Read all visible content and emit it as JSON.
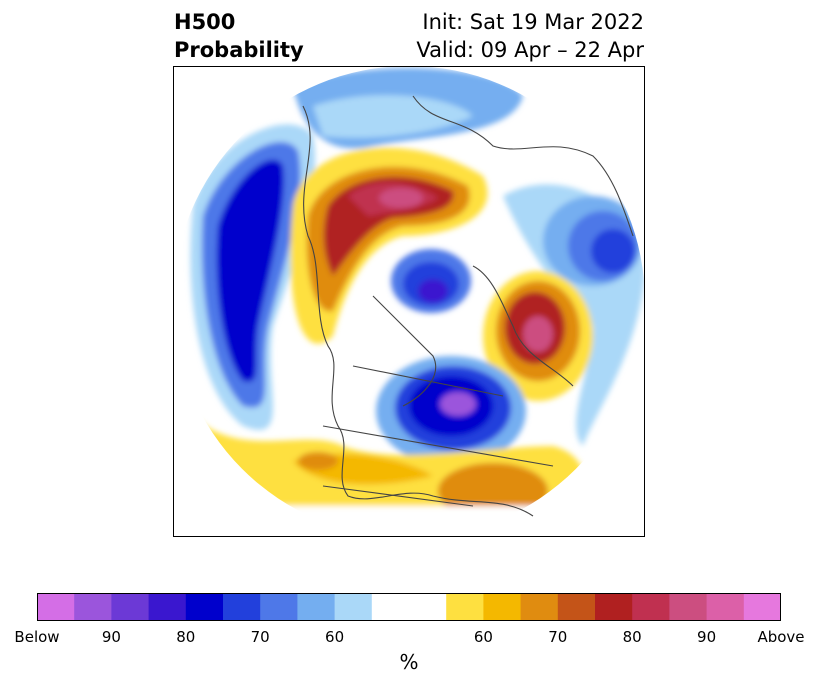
{
  "title": {
    "line1_left": "H500",
    "line2_left": "Probability",
    "line1_right": "Init: Sat 19 Mar 2022",
    "line2_right": "Valid: 09 Apr – 22 Apr"
  },
  "colorbar": {
    "unit": "%",
    "colors": [
      "#d46ee6",
      "#9b55dc",
      "#6c39d6",
      "#3a17cf",
      "#0000cc",
      "#2240dc",
      "#4e78e8",
      "#74aef0",
      "#aad8f8",
      "#ffffff",
      "#ffffff",
      "#fee040",
      "#f4b800",
      "#e08c10",
      "#c45418",
      "#b02020",
      "#c03050",
      "#cc4e80",
      "#dc60a8",
      "#e678de"
    ],
    "tick_labels": [
      "Below",
      "90",
      "80",
      "70",
      "60",
      "",
      "60",
      "70",
      "80",
      "90",
      "Above"
    ]
  }
}
